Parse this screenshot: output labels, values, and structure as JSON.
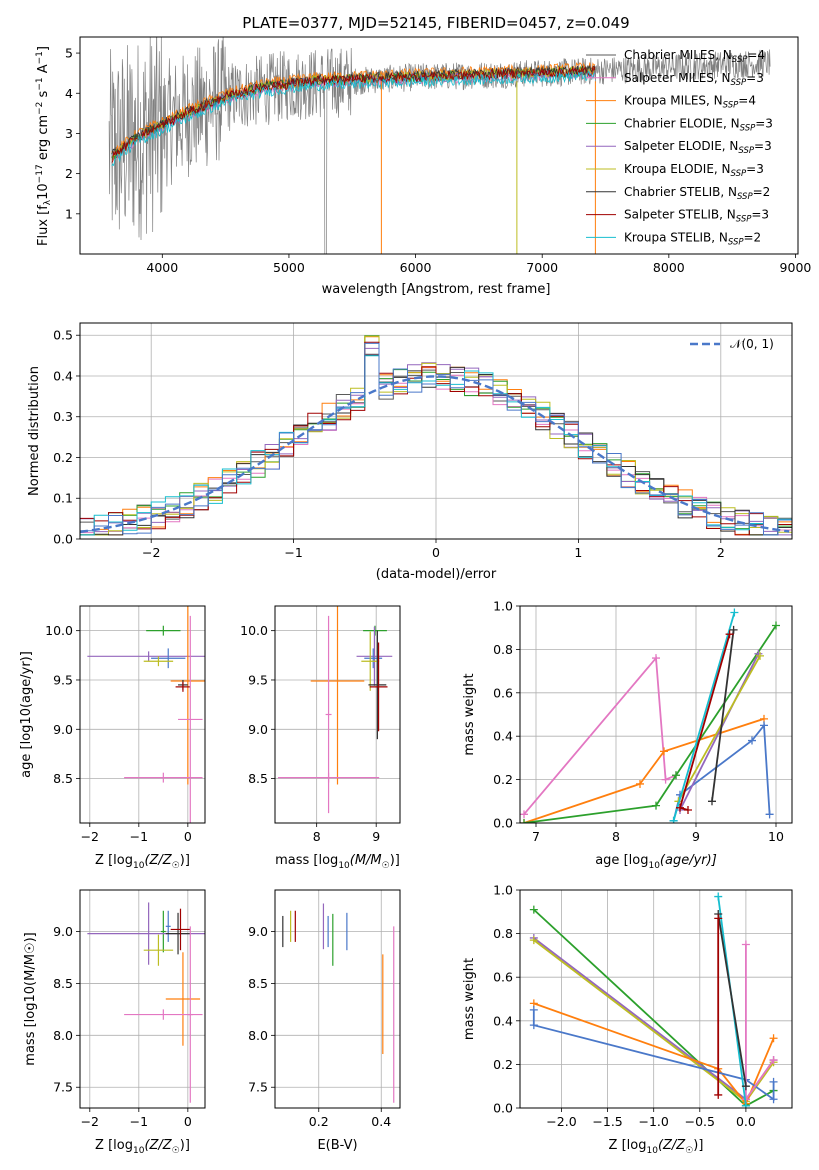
{
  "figure_title": "PLATE=0377, MJD=52145, FIBERID=0457, z=0.049",
  "colors": {
    "chabrier_miles": "#5a5a5a",
    "salpeter_miles": "#e377c2",
    "kroupa_miles": "#ff7f0e",
    "chabrier_elodie": "#2ca02c",
    "salpeter_elodie": "#9467bd",
    "kroupa_elodie": "#bcbd22",
    "chabrier_stelib": "#333333",
    "salpeter_stelib": "#a00000",
    "kroupa_stelib": "#17becf"
  },
  "chart_data": [
    {
      "type": "line",
      "title": "PLATE=0377, MJD=52145, FIBERID=0457, z=0.049",
      "xlabel": "wavelength [Angstrom, rest frame]",
      "ylabel": "Flux [f_λ 10^-17 erg cm^-2 s^-1 A^-1]",
      "xlim": [
        3350,
        9020
      ],
      "ylim": [
        0,
        5.4
      ],
      "xticks": [
        "4000",
        "5000",
        "6000",
        "7000",
        "8000",
        "9000"
      ],
      "yticks": [
        "1",
        "2",
        "3",
        "4",
        "5"
      ],
      "legend_position": "top-right",
      "series": [
        {
          "name": "Chabrier MILES, N_SSP=4",
          "label_main": "Chabrier MILES, N",
          "label_sub": "SSP",
          "label_tail": "=4",
          "color": "#5a5a5a"
        },
        {
          "name": "Salpeter MILES, N_SSP=3",
          "label_main": "Salpeter MILES, N",
          "label_sub": "SSP",
          "label_tail": "=3",
          "color": "#e377c2"
        },
        {
          "name": "Kroupa MILES, N_SSP=4",
          "label_main": "Kroupa MILES, N",
          "label_sub": "SSP",
          "label_tail": "=4",
          "color": "#ff7f0e"
        },
        {
          "name": "Chabrier ELODIE, N_SSP=3",
          "label_main": "Chabrier ELODIE, N",
          "label_sub": "SSP",
          "label_tail": "=3",
          "color": "#2ca02c"
        },
        {
          "name": "Salpeter ELODIE, N_SSP=3",
          "label_main": "Salpeter ELODIE, N",
          "label_sub": "SSP",
          "label_tail": "=3",
          "color": "#9467bd"
        },
        {
          "name": "Kroupa ELODIE, N_SSP=3",
          "label_main": "Kroupa ELODIE, N",
          "label_sub": "SSP",
          "label_tail": "=3",
          "color": "#bcbd22"
        },
        {
          "name": "Chabrier STELIB, N_SSP=2",
          "label_main": "Chabrier STELIB, N",
          "label_sub": "SSP",
          "label_tail": "=2",
          "color": "#333333"
        },
        {
          "name": "Salpeter STELIB, N_SSP=3",
          "label_main": "Salpeter STELIB, N",
          "label_sub": "SSP",
          "label_tail": "=3",
          "color": "#a00000"
        },
        {
          "name": "Kroupa STELIB, N_SSP=2",
          "label_main": "Kroupa STELIB, N",
          "label_sub": "SSP",
          "label_tail": "=2",
          "color": "#17becf"
        }
      ],
      "model_continuum_points": [
        [
          3600,
          2.4
        ],
        [
          3800,
          2.9
        ],
        [
          4000,
          3.2
        ],
        [
          4200,
          3.5
        ],
        [
          4500,
          3.9
        ],
        [
          4800,
          4.15
        ],
        [
          5200,
          4.3
        ],
        [
          5600,
          4.35
        ],
        [
          6000,
          4.4
        ],
        [
          6500,
          4.45
        ],
        [
          7000,
          4.5
        ],
        [
          7400,
          4.55
        ]
      ],
      "observed_continuum_points": [
        [
          3580,
          2.5
        ],
        [
          4000,
          3.2
        ],
        [
          4500,
          3.9
        ],
        [
          5000,
          4.2
        ],
        [
          6000,
          4.4
        ],
        [
          7000,
          4.5
        ],
        [
          7400,
          4.55
        ],
        [
          7700,
          4.6
        ],
        [
          8300,
          4.7
        ],
        [
          8800,
          4.75
        ]
      ]
    },
    {
      "type": "line",
      "xlabel": "(data-model)/error",
      "ylabel": "Normed distribution",
      "xlim": [
        -2.5,
        2.5
      ],
      "ylim": [
        0,
        0.53
      ],
      "xticks": [
        "−2",
        "−1",
        "0",
        "1",
        "2"
      ],
      "yticks": [
        "0.0",
        "0.1",
        "0.2",
        "0.3",
        "0.4",
        "0.5"
      ],
      "legend_position": "top-right",
      "legend_label": "𝒩(0, 1)",
      "reference_series": {
        "name": "𝒩(0, 1)",
        "mean": 0,
        "std": 1,
        "color": "#4a78c9"
      },
      "bin_width": 0.1
    },
    {
      "type": "scatter",
      "xlabel_main": "Z [log",
      "xlabel_sub": "10",
      "xlabel_tail": "(Z/Z",
      "xlabel_end": ")]",
      "ylabel": "age  [log10(age/yr)]",
      "xlim": [
        -2.2,
        0.35
      ],
      "ylim": [
        8.05,
        10.25
      ],
      "xticks": [
        "−2",
        "−1",
        "0"
      ],
      "yticks": [
        "8.5",
        "9.0",
        "9.5",
        "10.0"
      ],
      "points": [
        {
          "x": -0.5,
          "xerr": 0.35,
          "y": 10.0,
          "yerr": 0.05,
          "color": "#2ca02c"
        },
        {
          "x": -0.8,
          "xerr": 1.25,
          "y": 9.74,
          "yerr": 0.05,
          "color": "#9467bd"
        },
        {
          "x": -0.4,
          "xerr": 0.35,
          "y": 9.72,
          "yerr": 0.1,
          "color": "#4a78c9"
        },
        {
          "x": -0.6,
          "xerr": 0.3,
          "y": 9.69,
          "yerr": 0.05,
          "color": "#bcbd22"
        },
        {
          "x": 0.0,
          "xerr": 0.35,
          "y": 9.49,
          "yerr": 1.05,
          "color": "#ff7f0e"
        },
        {
          "x": -0.1,
          "xerr": 0.1,
          "y": 9.45,
          "yerr": 0.05,
          "color": "#333333"
        },
        {
          "x": -0.1,
          "xerr": 0.15,
          "y": 9.43,
          "yerr": 0.05,
          "color": "#a00000"
        },
        {
          "x": -0.5,
          "xerr": 0.8,
          "y": 8.51,
          "yerr": 0.05,
          "color": "#e377c2"
        },
        {
          "x": 0.05,
          "xerr": 0.25,
          "y": 9.1,
          "yerr": 1.05,
          "color": "#e377c2"
        }
      ]
    },
    {
      "type": "scatter",
      "xlabel_main": "mass [log",
      "xlabel_sub": "10",
      "xlabel_tail": "(M/M",
      "xlabel_end": ")]",
      "xlim": [
        7.3,
        9.4
      ],
      "ylim": [
        8.05,
        10.25
      ],
      "xticks": [
        "8",
        "9"
      ],
      "yticks": [
        "8.5",
        "9.0",
        "9.5",
        "10.0"
      ],
      "points": [
        {
          "x": 8.98,
          "xerr": 0.2,
          "y": 10.0,
          "yerr": 0.05,
          "color": "#2ca02c"
        },
        {
          "x": 8.97,
          "xerr": 0.3,
          "y": 9.74,
          "yerr": 0.3,
          "color": "#9467bd"
        },
        {
          "x": 8.95,
          "xerr": 0.15,
          "y": 9.72,
          "yerr": 0.1,
          "color": "#4a78c9"
        },
        {
          "x": 8.9,
          "xerr": 0.15,
          "y": 9.69,
          "yerr": 0.3,
          "color": "#bcbd22"
        },
        {
          "x": 8.35,
          "xerr": 0.45,
          "y": 9.49,
          "yerr": 1.05,
          "color": "#ff7f0e"
        },
        {
          "x": 9.02,
          "xerr": 0.15,
          "y": 9.45,
          "yerr": 0.55,
          "color": "#333333"
        },
        {
          "x": 9.04,
          "xerr": 0.15,
          "y": 9.43,
          "yerr": 0.45,
          "color": "#a00000"
        },
        {
          "x": 8.2,
          "xerr": 0.85,
          "y": 8.51,
          "yerr": 0.05,
          "color": "#e377c2"
        },
        {
          "x": 8.2,
          "xerr": 0.05,
          "y": 9.15,
          "yerr": 1.0,
          "color": "#e377c2"
        }
      ]
    },
    {
      "type": "line",
      "xlabel_main": "age  [log",
      "xlabel_sub": "10",
      "xlabel_tail": "(age/yr)]",
      "ylabel": "mass weight",
      "xlim": [
        6.8,
        10.2
      ],
      "ylim": [
        0,
        1
      ],
      "xticks": [
        "7",
        "8",
        "9",
        "10"
      ],
      "yticks": [
        "0.0",
        "0.2",
        "0.4",
        "0.6",
        "0.8",
        "1.0"
      ],
      "series": [
        {
          "name": "",
          "color": "#e377c2",
          "points": [
            [
              6.85,
              0.04
            ],
            [
              8.5,
              0.76
            ],
            [
              8.62,
              0.2
            ],
            [
              8.75,
              0.22
            ]
          ]
        },
        {
          "name": "",
          "color": "#ff7f0e",
          "points": [
            [
              6.85,
              0.0
            ],
            [
              8.3,
              0.18
            ],
            [
              8.6,
              0.33
            ],
            [
              9.85,
              0.48
            ]
          ]
        },
        {
          "name": "",
          "color": "#2ca02c",
          "points": [
            [
              6.85,
              0.0
            ],
            [
              8.5,
              0.08
            ],
            [
              8.75,
              0.22
            ],
            [
              10.0,
              0.91
            ]
          ]
        },
        {
          "name": "",
          "color": "#4a78c9",
          "points": [
            [
              8.72,
              0.01
            ],
            [
              8.8,
              0.13
            ],
            [
              9.7,
              0.38
            ],
            [
              9.85,
              0.45
            ],
            [
              9.92,
              0.04
            ]
          ]
        },
        {
          "name": "",
          "color": "#9467bd",
          "points": [
            [
              8.8,
              0.06
            ],
            [
              9.78,
              0.78
            ]
          ]
        },
        {
          "name": "",
          "color": "#bcbd22",
          "points": [
            [
              8.78,
              0.1
            ],
            [
              9.8,
              0.77
            ]
          ]
        },
        {
          "name": "",
          "color": "#17becf",
          "points": [
            [
              8.72,
              0.01
            ],
            [
              9.48,
              0.97
            ]
          ]
        },
        {
          "name": "",
          "color": "#333333",
          "points": [
            [
              9.2,
              0.1
            ],
            [
              9.47,
              0.89
            ]
          ]
        },
        {
          "name": "",
          "color": "#a00000",
          "points": [
            [
              8.9,
              0.06
            ],
            [
              8.8,
              0.07
            ],
            [
              9.42,
              0.87
            ]
          ]
        }
      ]
    },
    {
      "type": "scatter",
      "xlabel_main": "Z [log",
      "xlabel_sub": "10",
      "xlabel_tail": "(Z/Z",
      "xlabel_end": ")]",
      "ylabel": "mass [log10(M/M☉)]",
      "xlim": [
        -2.2,
        0.35
      ],
      "ylim": [
        7.3,
        9.4
      ],
      "xticks": [
        "−2",
        "−1",
        "0"
      ],
      "yticks": [
        "7.5",
        "8.0",
        "8.5",
        "9.0"
      ],
      "points": [
        {
          "x": -0.5,
          "xerr": 0.05,
          "y": 9.0,
          "yerr": 0.2,
          "color": "#2ca02c"
        },
        {
          "x": -0.8,
          "xerr": 1.25,
          "y": 8.98,
          "yerr": 0.3,
          "color": "#9467bd"
        },
        {
          "x": -0.4,
          "xerr": 0.05,
          "y": 9.05,
          "yerr": 0.15,
          "color": "#4a78c9"
        },
        {
          "x": -0.6,
          "xerr": 0.3,
          "y": 8.82,
          "yerr": 0.15,
          "color": "#bcbd22"
        },
        {
          "x": -0.2,
          "xerr": 0.25,
          "y": 8.98,
          "yerr": 0.2,
          "color": "#333333"
        },
        {
          "x": -0.15,
          "xerr": 0.2,
          "y": 9.02,
          "yerr": 0.2,
          "color": "#a00000"
        },
        {
          "x": -0.1,
          "xerr": 0.35,
          "y": 8.35,
          "yerr": 0.45,
          "color": "#ff7f0e"
        },
        {
          "x": -0.5,
          "xerr": 0.8,
          "y": 8.2,
          "yerr": 0.05,
          "color": "#e377c2"
        },
        {
          "x": 0.05,
          "xerr": 0.05,
          "y": 8.2,
          "yerr": 0.85,
          "color": "#e377c2"
        }
      ]
    },
    {
      "type": "scatter",
      "xlabel": "E(B-V)",
      "xlim": [
        0.06,
        0.46
      ],
      "ylim": [
        7.3,
        9.4
      ],
      "xticks": [
        "0.2",
        "0.4"
      ],
      "yticks": [
        "7.5",
        "8.0",
        "8.5",
        "9.0"
      ],
      "points": [
        {
          "x": 0.085,
          "y": 9.0,
          "yerr": 0.15,
          "color": "#333333"
        },
        {
          "x": 0.11,
          "y": 9.05,
          "yerr": 0.15,
          "color": "#bcbd22"
        },
        {
          "x": 0.125,
          "y": 9.05,
          "yerr": 0.15,
          "color": "#a00000"
        },
        {
          "x": 0.215,
          "y": 9.05,
          "yerr": 0.22,
          "color": "#9467bd"
        },
        {
          "x": 0.23,
          "y": 9.0,
          "yerr": 0.15,
          "color": "#4a78c9"
        },
        {
          "x": 0.245,
          "y": 8.92,
          "yerr": 0.25,
          "color": "#2ca02c"
        },
        {
          "x": 0.29,
          "y": 9.0,
          "yerr": 0.18,
          "color": "#4a78c9"
        },
        {
          "x": 0.405,
          "y": 8.3,
          "yerr": 0.48,
          "color": "#ff7f0e"
        },
        {
          "x": 0.44,
          "y": 8.2,
          "yerr": 0.85,
          "color": "#e377c2"
        }
      ]
    },
    {
      "type": "line",
      "xlabel_main": "Z [log",
      "xlabel_sub": "10",
      "xlabel_tail": "(Z/Z",
      "xlabel_end": ")]",
      "ylabel": "mass weight",
      "xlim": [
        -2.45,
        0.5
      ],
      "ylim": [
        0,
        1
      ],
      "xticks": [
        "−2.0",
        "−1.5",
        "−1.0",
        "−0.5",
        "0.0"
      ],
      "yticks": [
        "0.0",
        "0.2",
        "0.4",
        "0.6",
        "0.8",
        "1.0"
      ],
      "series": [
        {
          "name": "",
          "color": "#2ca02c",
          "points": [
            [
              -2.3,
              0.91
            ],
            [
              0.0,
              0.01
            ],
            [
              0.3,
              0.08
            ]
          ]
        },
        {
          "name": "",
          "color": "#9467bd",
          "points": [
            [
              -2.3,
              0.78
            ],
            [
              0.0,
              0.04
            ],
            [
              0.3,
              0.22
            ]
          ]
        },
        {
          "name": "",
          "color": "#bcbd22",
          "points": [
            [
              -2.3,
              0.77
            ],
            [
              0.0,
              0.03
            ],
            [
              0.3,
              0.21
            ]
          ]
        },
        {
          "name": "",
          "color": "#ff7f0e",
          "points": [
            [
              -2.3,
              0.48
            ],
            [
              -0.3,
              0.18
            ],
            [
              0.0,
              0.02
            ],
            [
              0.3,
              0.32
            ]
          ]
        },
        {
          "name": "",
          "color": "#4a78c9",
          "points": [
            [
              -2.3,
              0.45
            ],
            [
              -2.3,
              0.38
            ],
            [
              0.0,
              0.13
            ],
            [
              0.3,
              0.04
            ],
            [
              0.3,
              0.12
            ]
          ]
        },
        {
          "name": "",
          "color": "#e377c2",
          "points": [
            [
              0.0,
              0.75
            ],
            [
              0.0,
              0.04
            ],
            [
              0.3,
              0.22
            ]
          ]
        },
        {
          "name": "",
          "color": "#17becf",
          "points": [
            [
              -0.3,
              0.97
            ],
            [
              0.0,
              0.01
            ]
          ]
        },
        {
          "name": "",
          "color": "#333333",
          "points": [
            [
              -0.3,
              0.89
            ],
            [
              0.0,
              0.1
            ]
          ]
        },
        {
          "name": "",
          "color": "#a00000",
          "points": [
            [
              -0.3,
              0.87
            ],
            [
              -0.3,
              0.06
            ]
          ]
        }
      ]
    }
  ]
}
